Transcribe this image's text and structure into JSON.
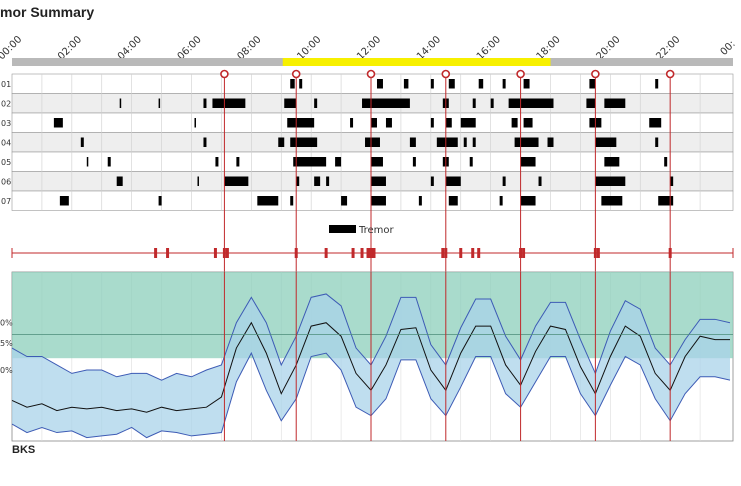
{
  "title": "mor Summary",
  "chart_data": [
    {
      "type": "event-raster",
      "title": "mor Summary",
      "x_ticks": [
        "00:00",
        "02:00",
        "04:00",
        "06:00",
        "08:00",
        "10:00",
        "12:00",
        "14:00",
        "16:00",
        "18:00",
        "20:00",
        "22:00",
        "00:"
      ],
      "x_range_hours": [
        0,
        24.1
      ],
      "highlight_hours": [
        9.05,
        18.0
      ],
      "highlight_color": "#f7f000",
      "row_labels": [
        "01",
        "02",
        "03",
        "04",
        "05",
        "06",
        "07"
      ],
      "dose_times_hours": [
        7.1,
        9.5,
        12.0,
        14.5,
        17.0,
        19.5,
        22.0
      ],
      "dose_color": "#c0292b",
      "legend": "Tremor",
      "tremor_color": "#000000",
      "rows": [
        [
          [
            9.3,
            9.45
          ],
          [
            9.6,
            9.7
          ],
          [
            12.2,
            12.4
          ],
          [
            13.1,
            13.25
          ],
          [
            14.0,
            14.1
          ],
          [
            14.6,
            14.8
          ],
          [
            15.6,
            15.75
          ],
          [
            16.4,
            16.5
          ],
          [
            17.1,
            17.3
          ],
          [
            19.3,
            19.5
          ],
          [
            21.5,
            21.6
          ]
        ],
        [
          [
            3.6,
            3.65
          ],
          [
            4.9,
            4.95
          ],
          [
            6.4,
            6.5
          ],
          [
            6.7,
            7.8
          ],
          [
            9.1,
            9.5
          ],
          [
            10.1,
            10.2
          ],
          [
            11.7,
            13.3
          ],
          [
            14.4,
            14.6
          ],
          [
            15.4,
            15.5
          ],
          [
            16.0,
            16.1
          ],
          [
            16.6,
            18.1
          ],
          [
            19.2,
            19.5
          ],
          [
            19.8,
            20.5
          ]
        ],
        [
          [
            1.4,
            1.7
          ],
          [
            6.1,
            6.15
          ],
          [
            9.2,
            10.1
          ],
          [
            11.3,
            11.4
          ],
          [
            12.0,
            12.2
          ],
          [
            12.5,
            12.7
          ],
          [
            14.0,
            14.1
          ],
          [
            14.5,
            14.7
          ],
          [
            15.0,
            15.5
          ],
          [
            16.7,
            16.9
          ],
          [
            17.1,
            17.4
          ],
          [
            19.3,
            19.7
          ],
          [
            21.3,
            21.7
          ]
        ],
        [
          [
            2.3,
            2.4
          ],
          [
            6.4,
            6.5
          ],
          [
            8.9,
            9.1
          ],
          [
            9.3,
            10.2
          ],
          [
            11.8,
            12.3
          ],
          [
            13.3,
            13.5
          ],
          [
            14.2,
            14.9
          ],
          [
            15.1,
            15.2
          ],
          [
            15.4,
            15.5
          ],
          [
            16.8,
            17.6
          ],
          [
            17.9,
            18.1
          ],
          [
            19.5,
            20.2
          ],
          [
            21.5,
            21.6
          ]
        ],
        [
          [
            2.5,
            2.55
          ],
          [
            3.2,
            3.3
          ],
          [
            6.8,
            6.9
          ],
          [
            7.5,
            7.6
          ],
          [
            9.4,
            10.5
          ],
          [
            10.8,
            11.0
          ],
          [
            12.0,
            12.4
          ],
          [
            13.4,
            13.5
          ],
          [
            14.4,
            14.6
          ],
          [
            15.3,
            15.4
          ],
          [
            17.0,
            17.5
          ],
          [
            19.8,
            20.3
          ],
          [
            21.8,
            21.9
          ]
        ],
        [
          [
            3.5,
            3.7
          ],
          [
            6.2,
            6.25
          ],
          [
            7.1,
            7.9
          ],
          [
            9.5,
            9.6
          ],
          [
            10.1,
            10.3
          ],
          [
            10.5,
            10.6
          ],
          [
            12.0,
            12.5
          ],
          [
            14.0,
            14.1
          ],
          [
            14.5,
            15.0
          ],
          [
            16.4,
            16.5
          ],
          [
            17.6,
            17.7
          ],
          [
            19.5,
            20.5
          ],
          [
            22.0,
            22.1
          ]
        ],
        [
          [
            1.6,
            1.9
          ],
          [
            4.9,
            5.0
          ],
          [
            8.2,
            8.9
          ],
          [
            9.3,
            9.4
          ],
          [
            11.0,
            11.2
          ],
          [
            12.0,
            12.5
          ],
          [
            13.6,
            13.7
          ],
          [
            14.6,
            14.9
          ],
          [
            16.3,
            16.4
          ],
          [
            17.0,
            17.5
          ],
          [
            19.7,
            20.4
          ],
          [
            21.6,
            22.1
          ]
        ]
      ]
    },
    {
      "type": "area",
      "xlabel": "BKS",
      "x_range_hours": [
        0,
        24.1
      ],
      "y_ticks": [
        "0%",
        "5%",
        "0%"
      ],
      "target_band_color": "#8ccfbb",
      "iqr_color": "#a9d3ea",
      "outer_color": "#3d5bb5",
      "median_color": "#111111",
      "event_marker_hours": [
        4.8,
        5.2,
        6.8,
        7.1,
        7.2,
        9.5,
        10.5,
        11.4,
        11.7,
        11.9,
        12.0,
        12.1,
        14.4,
        14.5,
        15.0,
        15.4,
        15.6,
        17.0,
        17.1,
        19.5,
        19.6,
        22.0
      ],
      "dose_times_hours": [
        7.1,
        9.5,
        12.0,
        14.5,
        17.0,
        19.5,
        22.0
      ],
      "sample_hours": [
        0,
        0.5,
        1,
        1.5,
        2,
        2.5,
        3,
        3.5,
        4,
        4.5,
        5,
        5.5,
        6,
        6.5,
        7,
        7.5,
        8,
        8.5,
        9,
        9.5,
        10,
        10.5,
        11,
        11.5,
        12,
        12.5,
        13,
        13.5,
        14,
        14.5,
        15,
        15.5,
        16,
        16.5,
        17,
        17.5,
        18,
        18.5,
        19,
        19.5,
        20,
        20.5,
        21,
        21.5,
        22,
        22.5,
        23,
        23.5,
        24
      ],
      "median_norm": [
        0.24,
        0.2,
        0.22,
        0.18,
        0.2,
        0.19,
        0.2,
        0.18,
        0.19,
        0.17,
        0.2,
        0.18,
        0.19,
        0.2,
        0.26,
        0.55,
        0.7,
        0.52,
        0.28,
        0.45,
        0.68,
        0.7,
        0.62,
        0.4,
        0.3,
        0.45,
        0.66,
        0.67,
        0.42,
        0.3,
        0.52,
        0.68,
        0.68,
        0.45,
        0.33,
        0.53,
        0.68,
        0.66,
        0.44,
        0.28,
        0.5,
        0.68,
        0.62,
        0.4,
        0.3,
        0.5,
        0.62,
        0.6,
        0.6
      ],
      "upper_norm": [
        0.55,
        0.5,
        0.5,
        0.45,
        0.4,
        0.42,
        0.42,
        0.38,
        0.4,
        0.4,
        0.36,
        0.4,
        0.38,
        0.42,
        0.45,
        0.7,
        0.85,
        0.7,
        0.45,
        0.62,
        0.85,
        0.87,
        0.8,
        0.55,
        0.45,
        0.62,
        0.85,
        0.85,
        0.57,
        0.45,
        0.67,
        0.84,
        0.84,
        0.62,
        0.48,
        0.68,
        0.82,
        0.82,
        0.6,
        0.4,
        0.65,
        0.83,
        0.78,
        0.55,
        0.45,
        0.6,
        0.72,
        0.72,
        0.7
      ],
      "lower_norm": [
        0.1,
        0.05,
        0.08,
        0.05,
        0.06,
        0.02,
        0.03,
        0.04,
        0.08,
        0.02,
        0.06,
        0.05,
        0.03,
        0.04,
        0.05,
        0.35,
        0.52,
        0.3,
        0.12,
        0.25,
        0.5,
        0.52,
        0.42,
        0.2,
        0.15,
        0.25,
        0.48,
        0.48,
        0.25,
        0.15,
        0.32,
        0.5,
        0.5,
        0.28,
        0.2,
        0.35,
        0.5,
        0.5,
        0.28,
        0.15,
        0.33,
        0.5,
        0.45,
        0.25,
        0.12,
        0.28,
        0.38,
        0.38,
        0.36
      ],
      "target_band_norm": [
        0.49,
        1.0
      ],
      "target_line_norm": 0.63
    }
  ]
}
